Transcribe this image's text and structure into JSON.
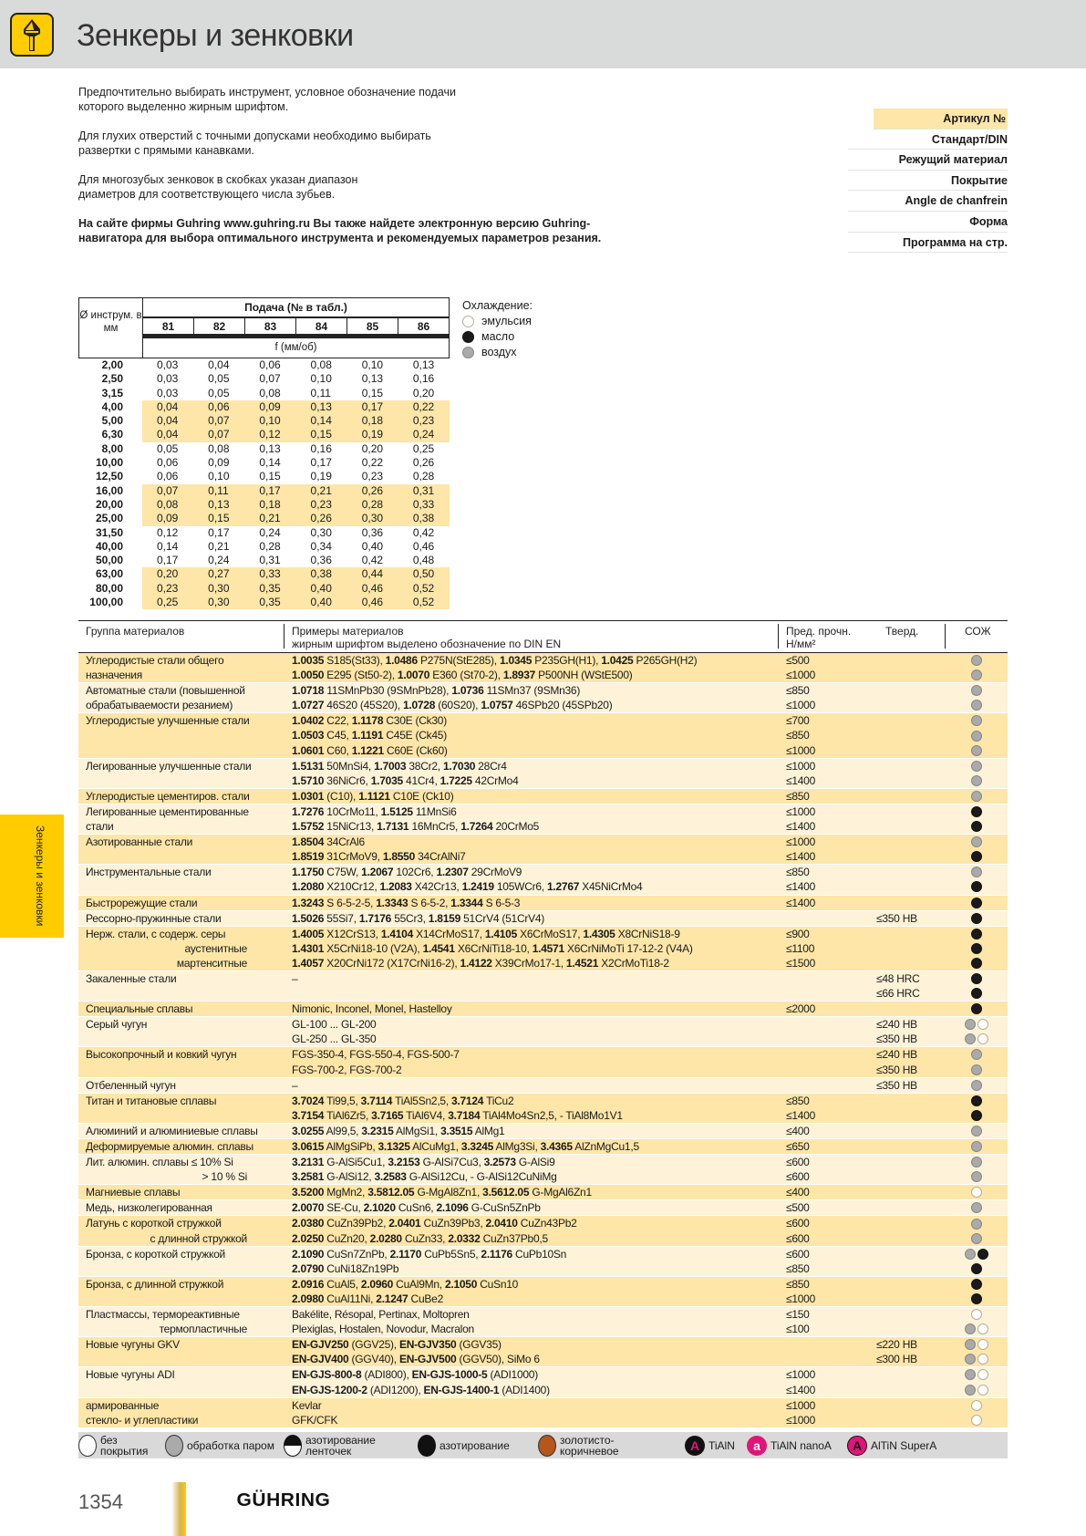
{
  "header": {
    "title": "Зенкеры и зенковки",
    "icon": "countersink-tool-icon"
  },
  "intro": [
    {
      "text": "Предпочтительно выбирать инструмент, условное обозначение подачи которого выделенно жирным шрифтом.",
      "bold": false
    },
    {
      "text": "Для глухих отверстий с точными допусками необходимо выбирать развертки с прямыми канавками.",
      "bold": false
    },
    {
      "text": "Для многозубых зенковок в скобках указан диапазон диаметров для соответствующего числа зубьев.",
      "bold": false
    },
    {
      "text": "На сайте фирмы Guhring www.guhring.ru Вы также найдете электронную версию Guhring-навигатора для выбора оптимального инструмента и рекомендуемых параметров резания.",
      "bold": true
    }
  ],
  "properties": [
    "Артикул №",
    "Стандарт/DIN",
    "Режущий материал",
    "Покрытие",
    "Angle de chanfrein",
    "Форма",
    "Программа на стр."
  ],
  "feed_table": {
    "diameter_header": "Ø инструм. в мм",
    "feed_header": "Подача (№ в табл.)",
    "columns": [
      "81",
      "82",
      "83",
      "84",
      "85",
      "86"
    ],
    "unit": "f (мм/об)",
    "rows": [
      {
        "d": "2,00",
        "v": [
          "0,03",
          "0,04",
          "0,06",
          "0,08",
          "0,10",
          "0,13"
        ],
        "highlight": false
      },
      {
        "d": "2,50",
        "v": [
          "0,03",
          "0,05",
          "0,07",
          "0,10",
          "0,13",
          "0,16"
        ],
        "highlight": false
      },
      {
        "d": "3,15",
        "v": [
          "0,03",
          "0,05",
          "0,08",
          "0,11",
          "0,15",
          "0,20"
        ],
        "highlight": false
      },
      {
        "d": "4,00",
        "v": [
          "0,04",
          "0,06",
          "0,09",
          "0,13",
          "0,17",
          "0,22"
        ],
        "highlight": true
      },
      {
        "d": "5,00",
        "v": [
          "0,04",
          "0,07",
          "0,10",
          "0,14",
          "0,18",
          "0,23"
        ],
        "highlight": true
      },
      {
        "d": "6,30",
        "v": [
          "0,04",
          "0,07",
          "0,12",
          "0,15",
          "0,19",
          "0,24"
        ],
        "highlight": true
      },
      {
        "d": "8,00",
        "v": [
          "0,05",
          "0,08",
          "0,13",
          "0,16",
          "0,20",
          "0,25"
        ],
        "highlight": false
      },
      {
        "d": "10,00",
        "v": [
          "0,06",
          "0,09",
          "0,14",
          "0,17",
          "0,22",
          "0,26"
        ],
        "highlight": false
      },
      {
        "d": "12,50",
        "v": [
          "0,06",
          "0,10",
          "0,15",
          "0,19",
          "0,23",
          "0,28"
        ],
        "highlight": false
      },
      {
        "d": "16,00",
        "v": [
          "0,07",
          "0,11",
          "0,17",
          "0,21",
          "0,26",
          "0,31"
        ],
        "highlight": true
      },
      {
        "d": "20,00",
        "v": [
          "0,08",
          "0,13",
          "0,18",
          "0,23",
          "0,28",
          "0,33"
        ],
        "highlight": true
      },
      {
        "d": "25,00",
        "v": [
          "0,09",
          "0,15",
          "0,21",
          "0,26",
          "0,30",
          "0,38"
        ],
        "highlight": true
      },
      {
        "d": "31,50",
        "v": [
          "0,12",
          "0,17",
          "0,24",
          "0,30",
          "0,36",
          "0,42"
        ],
        "highlight": false
      },
      {
        "d": "40,00",
        "v": [
          "0,14",
          "0,21",
          "0,28",
          "0,34",
          "0,40",
          "0,46"
        ],
        "highlight": false
      },
      {
        "d": "50,00",
        "v": [
          "0,17",
          "0,24",
          "0,31",
          "0,36",
          "0,42",
          "0,48"
        ],
        "highlight": false
      },
      {
        "d": "63,00",
        "v": [
          "0,20",
          "0,27",
          "0,33",
          "0,38",
          "0,44",
          "0,50"
        ],
        "highlight": true
      },
      {
        "d": "80,00",
        "v": [
          "0,23",
          "0,30",
          "0,35",
          "0,40",
          "0,46",
          "0,52"
        ],
        "highlight": true
      },
      {
        "d": "100,00",
        "v": [
          "0,25",
          "0,30",
          "0,35",
          "0,40",
          "0,46",
          "0,52"
        ],
        "highlight": true
      }
    ]
  },
  "coolant_legend": {
    "title": "Охлаждение:",
    "items": [
      {
        "type": "emulsion",
        "label": "эмульсия"
      },
      {
        "type": "oil",
        "label": "масло"
      },
      {
        "type": "air",
        "label": "воздух"
      }
    ]
  },
  "materials": {
    "headers": {
      "group": "Группа материалов",
      "examples": "Примеры материалов",
      "examples_note": "жирным шрифтом выделено обозначение по DIN EN",
      "strength": "Пред. прочн.",
      "strength_unit": "Н/мм²",
      "hardness": "Тверд.",
      "coolant": "СОЖ"
    },
    "groups": [
      {
        "m": [
          "Углеродистые стали общего",
          "назначения"
        ],
        "e": [
          "1.0035 S185(St33), 1.0486 P275N(StE285), 1.0345 P235GH(H1), 1.0425 P265GH(H2)",
          "1.0050 E295 (St50-2), 1.0070 E360 (St70-2), 1.8937 P500NH (WStE500)"
        ],
        "s": [
          "≤500",
          "≤1000"
        ],
        "h": [],
        "c": [
          [
            "air"
          ],
          [
            "air"
          ]
        ]
      },
      {
        "m": [
          "Автоматные стали (повышенной",
          "обрабатываемости резанием)"
        ],
        "e": [
          "1.0718 11SMnPb30 (9SMnPb28), 1.0736 11SMn37 (9SMn36)",
          "1.0727 46S20 (45S20), 1.0728 (60S20), 1.0757 46SPb20 (45SPb20)"
        ],
        "s": [
          "≤850",
          "≤1000"
        ],
        "h": [],
        "c": [
          [
            "air"
          ],
          [
            "air"
          ]
        ]
      },
      {
        "m": [
          "Углеродистые улучшенные стали"
        ],
        "e": [
          "1.0402 C22, 1.1178 C30E (Ck30)",
          "1.0503 C45, 1.1191 C45E (Ck45)",
          "1.0601 C60, 1.1221 C60E (Ck60)"
        ],
        "s": [
          "≤700",
          "≤850",
          "≤1000"
        ],
        "h": [],
        "c": [
          [
            "air"
          ],
          [
            "air"
          ],
          [
            "air"
          ]
        ]
      },
      {
        "m": [
          "Легированные улучшенные стали"
        ],
        "e": [
          "1.5131 50MnSi4, 1.7003 38Cr2, 1.7030 28Cr4",
          "1.5710 36NiCr6, 1.7035 41Cr4, 1.7225 42CrMo4"
        ],
        "s": [
          "≤1000",
          "≤1400"
        ],
        "h": [],
        "c": [
          [
            "air"
          ],
          [
            "air"
          ]
        ]
      },
      {
        "m": [
          "Углеродистые цементиров. стали"
        ],
        "e": [
          "1.0301 (C10), 1.1121 C10E (Ck10)"
        ],
        "s": [
          "≤850"
        ],
        "h": [],
        "c": [
          [
            "air"
          ]
        ]
      },
      {
        "m": [
          "Легированные цементированные",
          "стали"
        ],
        "e": [
          "1.7276 10CrMo11, 1.5125 11MnSi6",
          "1.5752 15NiCr13, 1.7131 16MnCr5, 1.7264 20CrMo5"
        ],
        "s": [
          "≤1000",
          "≤1400"
        ],
        "h": [],
        "c": [
          [
            "oil"
          ],
          [
            "oil"
          ]
        ]
      },
      {
        "m": [
          "Азотированные стали"
        ],
        "e": [
          "1.8504 34CrAl6",
          "1.8519 31CrMoV9, 1.8550 34CrAlNi7"
        ],
        "s": [
          "≤1000",
          "≤1400"
        ],
        "h": [],
        "c": [
          [
            "air"
          ],
          [
            "oil"
          ]
        ]
      },
      {
        "m": [
          "Инструментальные стали"
        ],
        "e": [
          "1.1750 C75W, 1.2067 102Cr6, 1.2307 29CrMoV9",
          "1.2080 X210Cr12, 1.2083 X42Cr13, 1.2419 105WCr6, 1.2767 X45NiCrMo4"
        ],
        "s": [
          "≤850",
          "≤1400"
        ],
        "h": [],
        "c": [
          [
            "air"
          ],
          [
            "oil"
          ]
        ]
      },
      {
        "m": [
          "Быстрорежущие стали"
        ],
        "e": [
          "1.3243 S 6-5-2-5, 1.3343 S 6-5-2, 1.3344 S 6-5-3"
        ],
        "s": [
          "≤1400"
        ],
        "h": [],
        "c": [
          [
            "oil"
          ]
        ]
      },
      {
        "m": [
          "Рессорно-пружинные стали"
        ],
        "e": [
          "1.5026 55Si7, 1.7176 55Cr3, 1.8159 51CrV4 (51CrV4)"
        ],
        "s": [],
        "h": [
          "≤350 HB"
        ],
        "c": [
          [
            "oil"
          ]
        ]
      },
      {
        "m": [
          "Нерж. стали, с содерж. серы",
          "аустенитные",
          "мартенситные"
        ],
        "sub": true,
        "e": [
          "1.4005 X12CrS13, 1.4104 X14CrMoS17, 1.4105 X6CrMoS17, 1.4305 X8CrNiS18-9",
          "1.4301 X5CrNi18-10 (V2A), 1.4541 X6CrNiTi18-10, 1.4571 X6CrNiMoTi 17-12-2 (V4A)",
          "1.4057 X20CrNi172 (X17CrNi16-2), 1.4122 X39CrMo17-1, 1.4521 X2CrMoTi18-2"
        ],
        "s": [
          "≤900",
          "≤1100",
          "≤1500"
        ],
        "h": [],
        "c": [
          [
            "oil"
          ],
          [
            "oil"
          ],
          [
            "oil"
          ]
        ]
      },
      {
        "m": [
          "Закаленные стали"
        ],
        "e": [
          "–"
        ],
        "s": [],
        "h": [
          "≤48 HRC",
          "≤66 HRC"
        ],
        "c": [
          [
            "oil"
          ],
          [
            "oil"
          ]
        ]
      },
      {
        "m": [
          "Специальные сплавы"
        ],
        "e": [
          "Nimonic, Inconel, Monel, Hastelloy"
        ],
        "s": [
          "≤2000"
        ],
        "h": [],
        "c": [
          [
            "oil"
          ]
        ]
      },
      {
        "m": [
          "Серый чугун"
        ],
        "e": [
          "GL-100 ... GL-200",
          "GL-250 ... GL-350"
        ],
        "s": [],
        "h": [
          "≤240 HB",
          "≤350 HB"
        ],
        "c": [
          [
            "air",
            "emulsion"
          ],
          [
            "air",
            "emulsion"
          ]
        ]
      },
      {
        "m": [
          "Высокопрочный и ковкий чугун"
        ],
        "e": [
          "FGS-350-4, FGS-550-4, FGS-500-7",
          "FGS-700-2, FGS-700-2"
        ],
        "s": [],
        "h": [
          "≤240 HB",
          "≤350 HB"
        ],
        "c": [
          [
            "air"
          ],
          [
            "air"
          ]
        ]
      },
      {
        "m": [
          "Отбеленный чугун"
        ],
        "e": [
          "–"
        ],
        "s": [],
        "h": [
          "≤350 HB"
        ],
        "c": [
          [
            "air"
          ]
        ]
      },
      {
        "m": [
          "Титан и титановые сплавы"
        ],
        "e": [
          "3.7024 Ti99,5, 3.7114 TiAl5Sn2,5, 3.7124 TiCu2",
          "3.7154 TiAl6Zr5, 3.7165 TiAl6V4, 3.7184 TiAl4Mo4Sn2,5, - TiAl8Mo1V1"
        ],
        "s": [
          "≤850",
          "≤1400"
        ],
        "h": [],
        "c": [
          [
            "oil"
          ],
          [
            "oil"
          ]
        ]
      },
      {
        "m": [
          "Алюминий и алюминиевые сплавы"
        ],
        "e": [
          "3.0255 Al99,5, 3.2315 AlMgSi1, 3.3515 AlMg1"
        ],
        "s": [
          "≤400"
        ],
        "h": [],
        "c": [
          [
            "air"
          ]
        ]
      },
      {
        "m": [
          "Деформируемые алюмин. сплавы"
        ],
        "e": [
          "3.0615 AlMgSiPb, 3.1325 AlCuMg1, 3.3245 AlMg3Si, 3.4365 AlZnMgCu1,5"
        ],
        "s": [
          "≤650"
        ],
        "h": [],
        "c": [
          [
            "air"
          ]
        ]
      },
      {
        "m": [
          "Лит. алюмин. сплавы ≤ 10% Si",
          "> 10 % Si"
        ],
        "sub": true,
        "e": [
          "3.2131 G-AlSi5Cu1, 3.2153 G-AlSi7Cu3, 3.2573 G-AlSi9",
          "3.2581 G-AlSi12, 3.2583 G-AlSi12Cu, - G-AlSi12CuNiMg"
        ],
        "s": [
          "≤600",
          "≤600"
        ],
        "h": [],
        "c": [
          [
            "air"
          ],
          [
            "air"
          ]
        ]
      },
      {
        "m": [
          "Магниевые сплавы"
        ],
        "e": [
          "3.5200 MgMn2, 3.5812.05 G-MgAl8Zn1, 3.5612.05 G-MgAl6Zn1"
        ],
        "s": [
          "≤400"
        ],
        "h": [],
        "c": [
          [
            "emulsion"
          ]
        ]
      },
      {
        "m": [
          "Медь, низколегированная"
        ],
        "e": [
          "2.0070 SE-Cu, 2.1020 CuSn6, 2.1096 G-CuSn5ZnPb"
        ],
        "s": [
          "≤500"
        ],
        "h": [],
        "c": [
          [
            "air"
          ]
        ]
      },
      {
        "m": [
          "Латунь с короткой стружкой",
          "с длинной стружкой"
        ],
        "sub": true,
        "e": [
          "2.0380 CuZn39Pb2, 2.0401 CuZn39Pb3, 2.0410 CuZn43Pb2",
          "2.0250 CuZn20, 2.0280 CuZn33, 2.0332 CuZn37Pb0,5"
        ],
        "s": [
          "≤600",
          "≤600"
        ],
        "h": [],
        "c": [
          [
            "air"
          ],
          [
            "air"
          ]
        ]
      },
      {
        "m": [
          "Бронза, с короткой стружкой"
        ],
        "e": [
          "2.1090 CuSn7ZnPb, 2.1170 CuPb5Sn5, 2.1176 CuPb10Sn",
          "2.0790 CuNi18Zn19Pb"
        ],
        "s": [
          "≤600",
          "≤850"
        ],
        "h": [],
        "c": [
          [
            "air",
            "oil"
          ],
          [
            "oil"
          ]
        ]
      },
      {
        "m": [
          "Бронза, с длинной стружкой"
        ],
        "e": [
          "2.0916 CuAl5, 2.0960 CuAl9Mn, 2.1050 CuSn10",
          "2.0980 CuAl11Ni, 2.1247 CuBe2"
        ],
        "s": [
          "≤850",
          "≤1000"
        ],
        "h": [],
        "c": [
          [
            "oil"
          ],
          [
            "oil"
          ]
        ]
      },
      {
        "m": [
          "Пластмассы, термореактивные",
          "термопластичные"
        ],
        "sub": true,
        "e": [
          "Bakélite, Résopal, Pertinax, Moltopren",
          "Plexiglas, Hostalen, Novodur, Macralon"
        ],
        "s": [
          "≤150",
          "≤100"
        ],
        "h": [],
        "c": [
          [
            "emulsion"
          ],
          [
            "air",
            "emulsion"
          ]
        ]
      },
      {
        "m": [
          "Новые чугуны GKV"
        ],
        "e": [
          "EN-GJV250 (GGV25), EN-GJV350 (GGV35)",
          "EN-GJV400 (GGV40), EN-GJV500 (GGV50), SiMo 6"
        ],
        "s": [],
        "h": [
          "≤220 HB",
          "≤300 HB"
        ],
        "c": [
          [
            "air",
            "emulsion"
          ],
          [
            "air",
            "emulsion"
          ]
        ]
      },
      {
        "m": [
          "Новые чугуны ADI"
        ],
        "e": [
          "EN-GJS-800-8 (ADI800), EN-GJS-1000-5 (ADI1000)",
          "EN-GJS-1200-2 (ADI1200), EN-GJS-1400-1 (ADI1400)"
        ],
        "s": [
          "≤1000",
          "≤1400"
        ],
        "h": [],
        "c": [
          [
            "air",
            "emulsion"
          ],
          [
            "air",
            "emulsion"
          ]
        ]
      },
      {
        "m": [
          "армированные",
          "стекло- и углепластики"
        ],
        "e": [
          "Kevlar",
          "GFK/CFK"
        ],
        "s": [
          "≤1000",
          "≤1000"
        ],
        "h": [],
        "c": [
          [
            "emulsion"
          ],
          [
            "emulsion"
          ]
        ]
      }
    ]
  },
  "coating_legend": [
    {
      "icon": "uncoated",
      "label": "без покрытия"
    },
    {
      "icon": "steam-treated",
      "label": "обработка паром"
    },
    {
      "icon": "land-nitrided",
      "label": "азотирование ленточек"
    },
    {
      "icon": "nitrided",
      "label": "азотирование"
    },
    {
      "icon": "gold-brown",
      "label": "золотисто-коричневое"
    },
    {
      "icon": "tialn",
      "glyph": "A",
      "label": "TiAlN"
    },
    {
      "icon": "tialn-nanoa",
      "glyph": "a",
      "label": "TiAlN nanoA"
    },
    {
      "icon": "altin-supera",
      "glyph": "A",
      "label": "AlTiN SuperA"
    }
  ],
  "colors": {
    "accent": "#ffcc00",
    "row_dark": "#fde6a8",
    "row_light": "#fef3d8",
    "header_band": "#d9dada",
    "coating_magenta": "#e0157a",
    "gold_brown": "#b5561a"
  },
  "side_tab": {
    "label": "Зенкеры и зенковки"
  },
  "footer": {
    "page_number": "1354",
    "logo": "GÜHRING"
  }
}
